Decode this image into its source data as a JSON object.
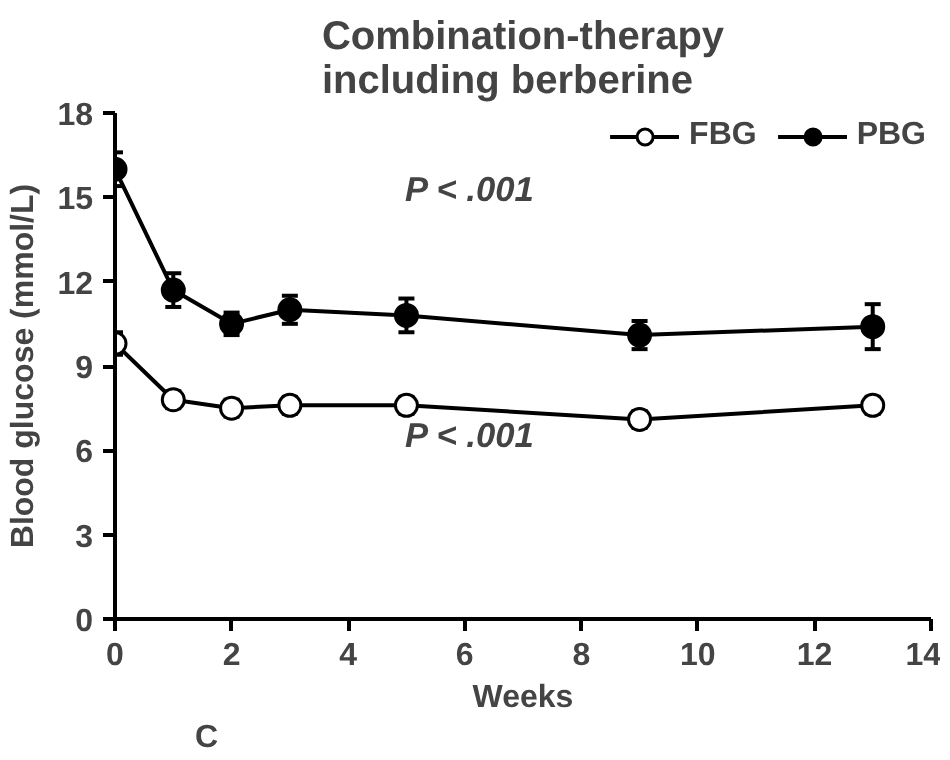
{
  "chart_data": {
    "type": "line",
    "title": "Combination-therapy\nincluding berberine",
    "xlabel": "Weeks",
    "ylabel": "Blood glucose (mmol/L)",
    "x": [
      0,
      1,
      2,
      3,
      5,
      9,
      13
    ],
    "series": [
      {
        "name": "FBG",
        "color": "#ffffff",
        "values": [
          9.8,
          7.8,
          7.5,
          7.6,
          7.6,
          7.1,
          7.6
        ],
        "errors": [
          0.4,
          0.3,
          0.3,
          0.3,
          0.3,
          0.3,
          0.3
        ]
      },
      {
        "name": "PBG",
        "color": "#000000",
        "values": [
          16.0,
          11.7,
          10.5,
          11.0,
          10.8,
          10.1,
          10.4
        ],
        "errors": [
          0.6,
          0.6,
          0.4,
          0.5,
          0.6,
          0.5,
          0.8
        ]
      }
    ],
    "annotations": [
      "P < .001",
      "P < .001",
      "C"
    ],
    "xlim": [
      0,
      14
    ],
    "ylim": [
      0,
      18
    ],
    "xticks": [
      0,
      2,
      4,
      6,
      8,
      10,
      12,
      14
    ],
    "yticks": [
      0,
      3,
      6,
      9,
      12,
      15,
      18
    ],
    "marker": "circle",
    "line_style": "solid",
    "grid": false,
    "legend": "top right"
  }
}
